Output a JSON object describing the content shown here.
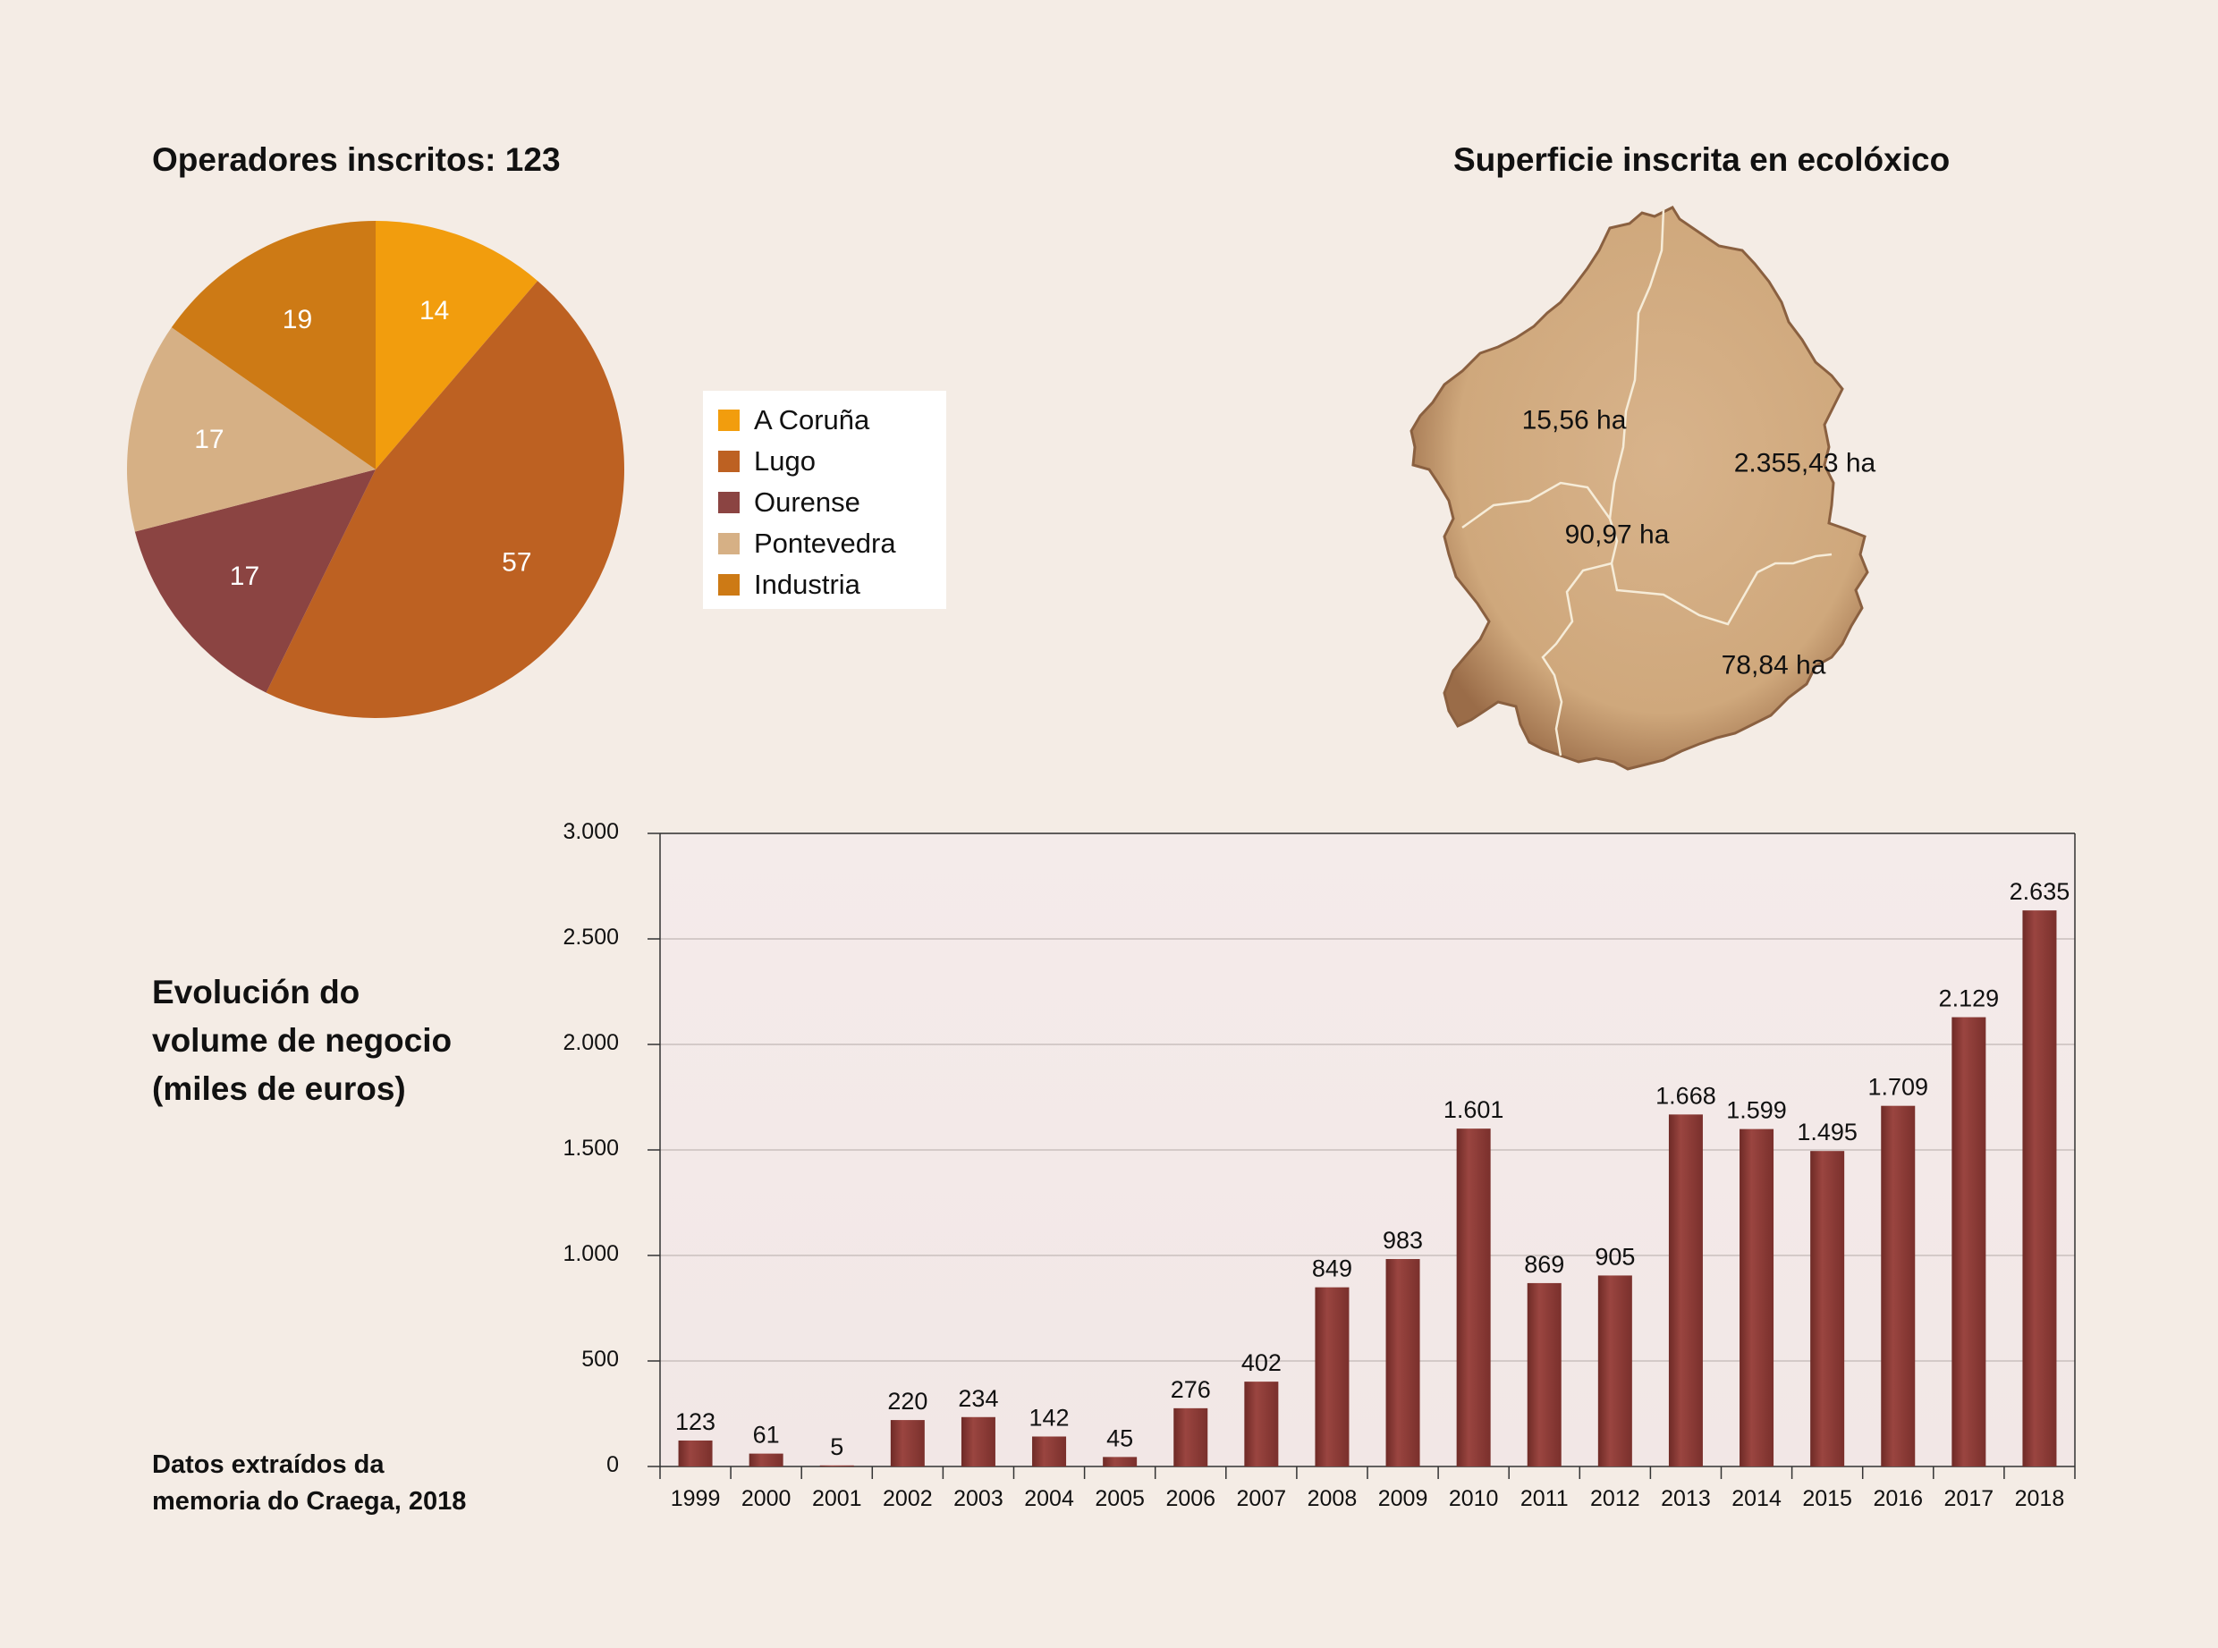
{
  "pie": {
    "title": "Operadores inscritos: 123"
  },
  "map": {
    "title": "Superficie inscrita en ecolóxico",
    "regions": [
      {
        "label": "15,56 ha"
      },
      {
        "label": "2.355,43 ha"
      },
      {
        "label": "90,97 ha"
      },
      {
        "label": "78,84 ha"
      }
    ],
    "colors": {
      "fill": "#d2ad85",
      "edge": "#8a6040",
      "border": "#f6ecd8"
    }
  },
  "bar": {
    "title_lines": [
      "Evolución do",
      "volume de negocio",
      "(miles de euros)"
    ]
  },
  "footnote": [
    "Datos extraídos da",
    "memoria do Craega, 2018"
  ],
  "chart_data": [
    {
      "type": "pie",
      "title": "Operadores inscritos: 123",
      "slices": [
        {
          "label": "A Coruña",
          "value": 14,
          "color": "#f29d0d"
        },
        {
          "label": "Lugo",
          "value": 57,
          "color": "#bd6122"
        },
        {
          "label": "Ourense",
          "value": 17,
          "color": "#8b4442"
        },
        {
          "label": "Pontevedra",
          "value": 17,
          "color": "#d6b085"
        },
        {
          "label": "Industria",
          "value": 19,
          "color": "#cd7a15"
        }
      ],
      "legend_position": "right"
    },
    {
      "type": "bar",
      "title": "Evolución do volume de negocio (miles de euros)",
      "categories": [
        "1999",
        "2000",
        "2001",
        "2002",
        "2003",
        "2004",
        "2005",
        "2006",
        "2007",
        "2008",
        "2009",
        "2010",
        "2011",
        "2012",
        "2013",
        "2014",
        "2015",
        "2016",
        "2017",
        "2018"
      ],
      "values": [
        123,
        61,
        5,
        220,
        234,
        142,
        45,
        276,
        402,
        849,
        983,
        1601,
        869,
        905,
        1668,
        1599,
        1495,
        1709,
        2129,
        2635
      ],
      "data_labels": [
        "123",
        "61",
        "5",
        "220",
        "234",
        "142",
        "45",
        "276",
        "402",
        "849",
        "983",
        "1.601",
        "869",
        "905",
        "1.668",
        "1.599",
        "1.495",
        "1.709",
        "2.129",
        "2.635"
      ],
      "ylim": [
        0,
        3000
      ],
      "yticks": [
        0,
        500,
        1000,
        1500,
        2000,
        2500,
        3000
      ],
      "ytick_labels": [
        "0",
        "500",
        "1.000",
        "1.500",
        "2.000",
        "2.500",
        "3.000"
      ],
      "grid": true,
      "bar_color": "#8b3a36"
    }
  ]
}
